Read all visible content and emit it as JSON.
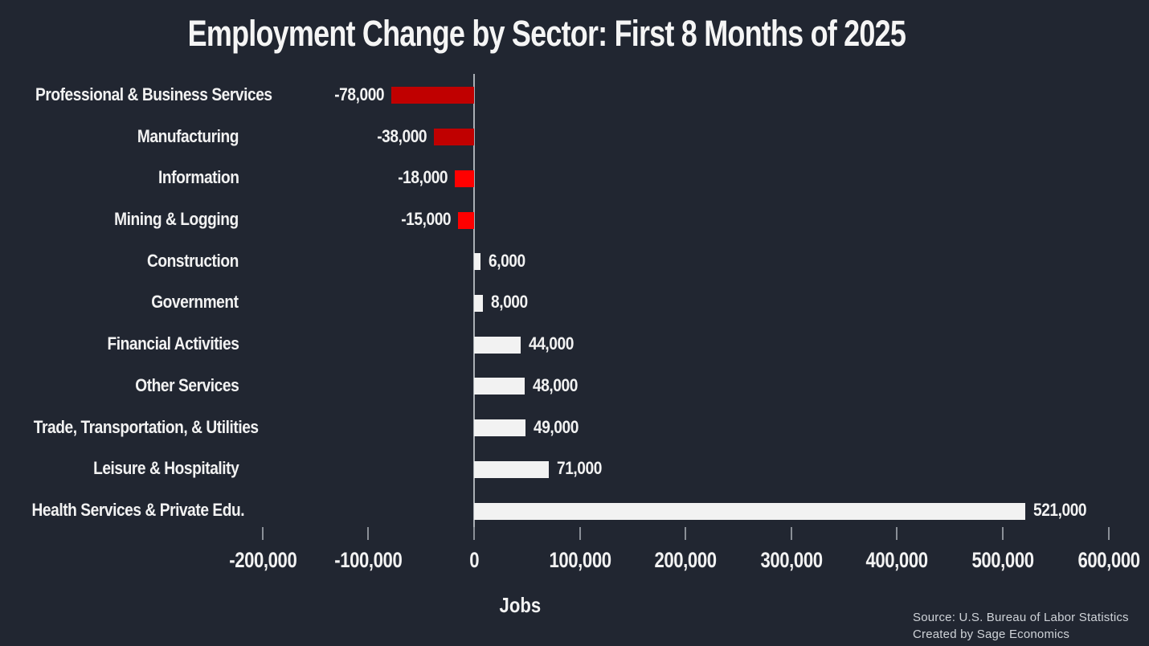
{
  "title": "Employment Change by Sector: First 8 Months of 2025",
  "xlabel": "Jobs",
  "source": {
    "line1": "Source: U.S. Bureau of Labor Statistics",
    "line2": "Created by Sage Economics"
  },
  "colors": {
    "background": "#212631",
    "positive_bar": "#f2f2f2",
    "negative_bar_dark": "#c00000",
    "negative_bar_bright": "#ff0000",
    "axis": "#a9aeb4",
    "tick": "#8a8f97",
    "text": "#f2f2f2",
    "source_text": "#cfd3d8"
  },
  "chart_data": {
    "type": "bar",
    "orientation": "horizontal",
    "title": "Employment Change by Sector: First 8 Months of 2025",
    "xlabel": "Jobs",
    "ylabel": "",
    "grid": false,
    "legend": false,
    "xlim": [
      -250000,
      640000
    ],
    "categories": [
      "Professional & Business Services",
      "Manufacturing",
      "Information",
      "Mining & Logging",
      "Construction",
      "Government",
      "Financial Activities",
      "Other Services",
      "Trade, Transportation, & Utilities",
      "Leisure & Hospitality",
      "Health Services & Private Edu."
    ],
    "values": [
      -78000,
      -38000,
      -18000,
      -15000,
      6000,
      8000,
      44000,
      48000,
      49000,
      71000,
      521000
    ],
    "value_labels": [
      "-78,000",
      "-38,000",
      "-18,000",
      "-15,000",
      "6,000",
      "8,000",
      "44,000",
      "48,000",
      "49,000",
      "71,000",
      "521,000"
    ],
    "bar_colors": [
      "#c00000",
      "#c00000",
      "#ff0000",
      "#ff0000",
      "#f2f2f2",
      "#f2f2f2",
      "#f2f2f2",
      "#f2f2f2",
      "#f2f2f2",
      "#f2f2f2",
      "#f2f2f2"
    ],
    "x_ticks": [
      {
        "value": -200000,
        "label": "-200,000"
      },
      {
        "value": -100000,
        "label": "-100,000"
      },
      {
        "value": 0,
        "label": "0"
      },
      {
        "value": 100000,
        "label": "100,000"
      },
      {
        "value": 200000,
        "label": "200,000"
      },
      {
        "value": 300000,
        "label": "300,000"
      },
      {
        "value": 400000,
        "label": "400,000"
      },
      {
        "value": 500000,
        "label": "500,000"
      },
      {
        "value": 600000,
        "label": "600,000"
      }
    ]
  }
}
